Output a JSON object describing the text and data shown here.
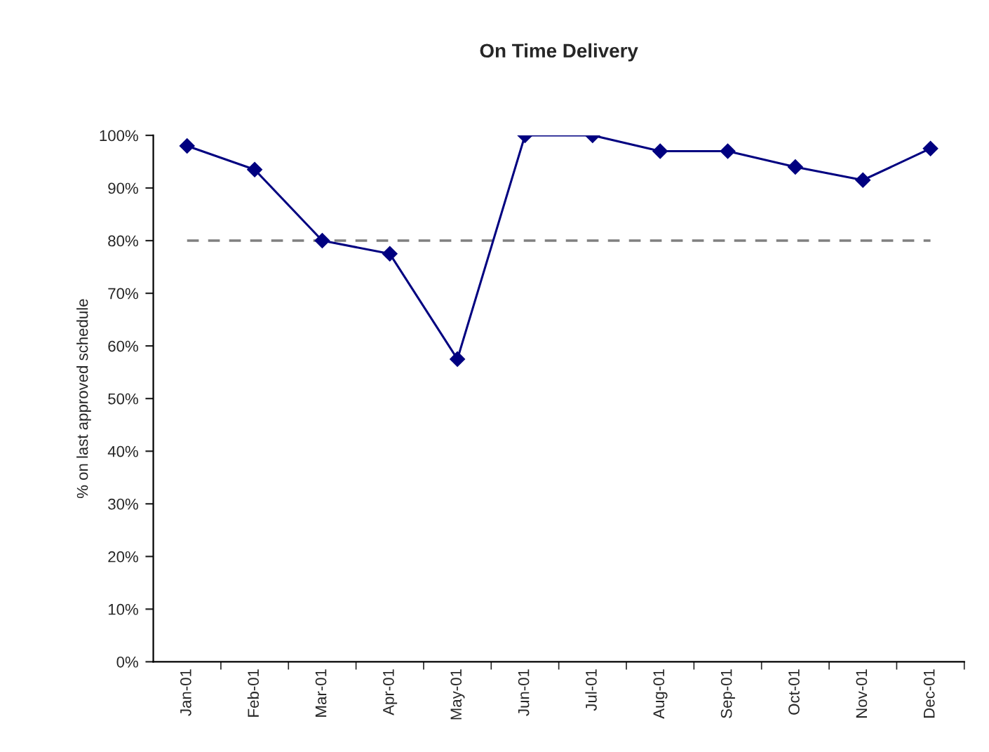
{
  "chart_data": {
    "type": "line",
    "title": "On Time Delivery",
    "ylabel": "% on last approved schedule",
    "categories": [
      "Jan-01",
      "Feb-01",
      "Mar-01",
      "Apr-01",
      "May-01",
      "Jun-01",
      "Jul-01",
      "Aug-01",
      "Sep-01",
      "Oct-01",
      "Nov-01",
      "Dec-01"
    ],
    "series": [
      {
        "color": "#000080",
        "values": [
          98,
          93.5,
          80,
          77.5,
          57.5,
          100,
          100,
          97,
          97,
          94,
          91.5,
          97.5
        ]
      }
    ],
    "ylim": [
      0,
      100
    ],
    "yticks": [
      {
        "value": 0,
        "label": "0%"
      },
      {
        "value": 10,
        "label": "10%"
      },
      {
        "value": 20,
        "label": "20%"
      },
      {
        "value": 30,
        "label": "30%"
      },
      {
        "value": 40,
        "label": "40%"
      },
      {
        "value": 50,
        "label": "50%"
      },
      {
        "value": 60,
        "label": "60%"
      },
      {
        "value": 70,
        "label": "70%"
      },
      {
        "value": 80,
        "label": "80%"
      },
      {
        "value": 90,
        "label": "90%"
      },
      {
        "value": 100,
        "label": "100%"
      }
    ],
    "ref_lines": [
      {
        "axis": "y",
        "value": 80,
        "color": "#808080",
        "line_style": "dashed"
      }
    ],
    "marker": "diamond",
    "line_style": "solid",
    "grid": false
  }
}
